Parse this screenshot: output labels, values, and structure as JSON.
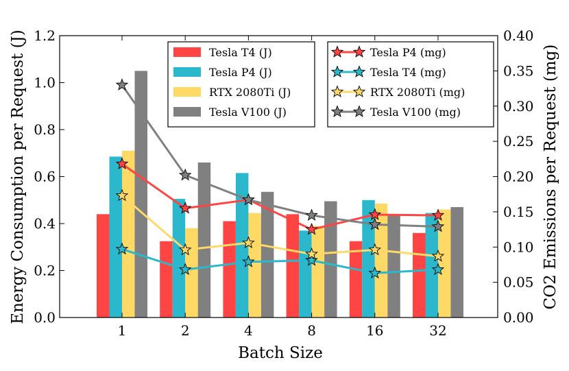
{
  "chart_data": {
    "type": "bar+line",
    "xlabel": "Batch Size",
    "ylabel_left": "Energy Consumption per Request (J)",
    "ylabel_right": "CO2 Emissions per Request (mg)",
    "categories": [
      "1",
      "2",
      "4",
      "8",
      "16",
      "32"
    ],
    "ylim_left": [
      0,
      1.2
    ],
    "ylim_right": [
      0,
      0.4
    ],
    "yticks_left": [
      "0.0",
      "0.2",
      "0.4",
      "0.6",
      "0.8",
      "1.0",
      "1.2"
    ],
    "yticks_right": [
      "0.00",
      "0.05",
      "0.10",
      "0.15",
      "0.20",
      "0.25",
      "0.30",
      "0.35",
      "0.40"
    ],
    "bar_series": [
      {
        "name": "Tesla T4 (J)",
        "color": "#ff4444",
        "values": [
          0.44,
          0.325,
          0.41,
          0.44,
          0.325,
          0.36
        ]
      },
      {
        "name": "Tesla P4 (J)",
        "color": "#2bb7cc",
        "values": [
          0.685,
          0.505,
          0.615,
          0.37,
          0.5,
          0.445
        ]
      },
      {
        "name": "RTX 2080Ti (J)",
        "color": "#ffd966",
        "values": [
          0.71,
          0.38,
          0.445,
          0.39,
          0.485,
          0.46
        ]
      },
      {
        "name": "Tesla V100 (J)",
        "color": "#808080",
        "values": [
          1.05,
          0.66,
          0.535,
          0.495,
          0.44,
          0.47
        ]
      }
    ],
    "line_series": [
      {
        "name": "Tesla P4 (mg)",
        "color": "#ff4444",
        "values": [
          0.218,
          0.155,
          0.167,
          0.125,
          0.146,
          0.145
        ]
      },
      {
        "name": "Tesla T4 (mg)",
        "color": "#2bb7cc",
        "values": [
          0.097,
          0.068,
          0.079,
          0.081,
          0.063,
          0.068
        ]
      },
      {
        "name": "RTX 2080Ti (mg)",
        "color": "#ffd966",
        "values": [
          0.173,
          0.096,
          0.106,
          0.09,
          0.096,
          0.087
        ]
      },
      {
        "name": "Tesla V100 (mg)",
        "color": "#808080",
        "values": [
          0.33,
          0.202,
          0.167,
          0.145,
          0.132,
          0.129
        ]
      }
    ]
  }
}
